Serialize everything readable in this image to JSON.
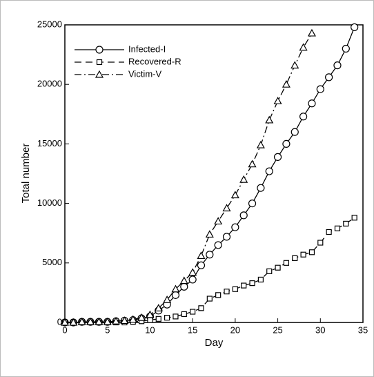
{
  "chart_data": {
    "type": "line",
    "xlabel": "Day",
    "ylabel": "Total number",
    "x": [
      0,
      1,
      2,
      3,
      4,
      5,
      6,
      7,
      8,
      9,
      10,
      11,
      12,
      13,
      14,
      15,
      16,
      17,
      18,
      19,
      20,
      21,
      22,
      23,
      24,
      25,
      26,
      27,
      28,
      29,
      30,
      31,
      32,
      33,
      34
    ],
    "series": [
      {
        "name": "Infected-I",
        "color": "#000000",
        "marker": "circle",
        "line_style": "solid",
        "values": [
          0,
          0,
          50,
          50,
          50,
          50,
          100,
          150,
          200,
          350,
          500,
          1000,
          1500,
          2300,
          3000,
          3600,
          4800,
          5700,
          6500,
          7200,
          8000,
          9000,
          10000,
          11300,
          12700,
          13900,
          15000,
          16000,
          17300,
          18400,
          19600,
          20600,
          21600,
          23000,
          24800
        ]
      },
      {
        "name": "Recovered-R",
        "color": "#000000",
        "marker": "square",
        "line_style": "dashed",
        "values": [
          0,
          0,
          0,
          0,
          0,
          0,
          0,
          0,
          50,
          100,
          200,
          300,
          400,
          500,
          700,
          900,
          1200,
          2000,
          2300,
          2600,
          2800,
          3100,
          3300,
          3600,
          4300,
          4600,
          5000,
          5400,
          5700,
          5900,
          6700,
          7600,
          7900,
          8300,
          8800
        ]
      },
      {
        "name": "Victim-V",
        "color": "#000000",
        "marker": "triangle",
        "line_style": "dashdot",
        "values": [
          0,
          0,
          50,
          50,
          50,
          50,
          100,
          150,
          250,
          400,
          650,
          1200,
          1900,
          2800,
          3500,
          4200,
          5600,
          7400,
          8500,
          9600,
          10700,
          12000,
          13300,
          14900,
          17000,
          18600,
          20000,
          21600,
          23100,
          24300,
          null,
          null,
          null,
          null,
          null
        ]
      }
    ],
    "xlim": [
      0,
      35
    ],
    "xticks": [
      0,
      5,
      10,
      15,
      20,
      25,
      30,
      35
    ],
    "ylim": [
      0,
      25000
    ],
    "yticks": [
      0,
      5000,
      10000,
      15000,
      20000,
      25000
    ],
    "legend": "upper left"
  }
}
